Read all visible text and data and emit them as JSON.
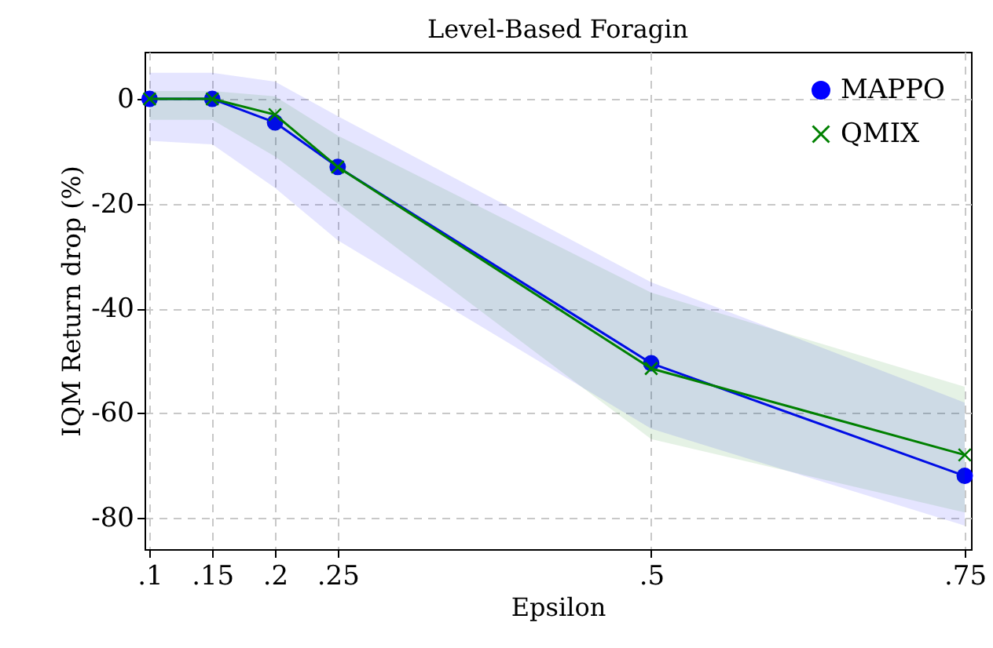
{
  "chart_data": {
    "type": "line",
    "title": "Level-Based Foragin",
    "xlabel": "Epsilon",
    "ylabel": "IQM Return drop (%)",
    "xlim": [
      0.096,
      0.755
    ],
    "xticks": [
      {
        "value": 0.1,
        "label": ".1"
      },
      {
        "value": 0.15,
        "label": ".15"
      },
      {
        "value": 0.2,
        "label": ".2"
      },
      {
        "value": 0.25,
        "label": ".25"
      },
      {
        "value": 0.5,
        "label": ".5"
      },
      {
        "value": 0.75,
        "label": ".75"
      }
    ],
    "ylim": [
      -86,
      9
    ],
    "yticks": [
      -80,
      -60,
      -40,
      -20,
      0
    ],
    "x": [
      0.1,
      0.15,
      0.2,
      0.25,
      0.5,
      0.75
    ],
    "series": [
      {
        "name": "MAPPO",
        "color": "#0000ff",
        "marker": "circle",
        "values": [
          0,
          0,
          -4.5,
          -13,
          -50.5,
          -72
        ],
        "lower": [
          -8,
          -8.7,
          -17,
          -27,
          -63,
          -81.5
        ],
        "upper": [
          5,
          5,
          3.3,
          -3.3,
          -35,
          -58
        ]
      },
      {
        "name": "QMIX",
        "color": "#008000",
        "marker": "cross",
        "values": [
          0,
          0,
          -3,
          -13,
          -51.5,
          -68
        ],
        "lower": [
          -4,
          -4,
          -11,
          -20,
          -65,
          -79
        ],
        "upper": [
          1.5,
          1.5,
          0.5,
          -7,
          -37,
          -55
        ]
      }
    ],
    "grid": true,
    "legend": "top right",
    "line_style": "solid"
  }
}
